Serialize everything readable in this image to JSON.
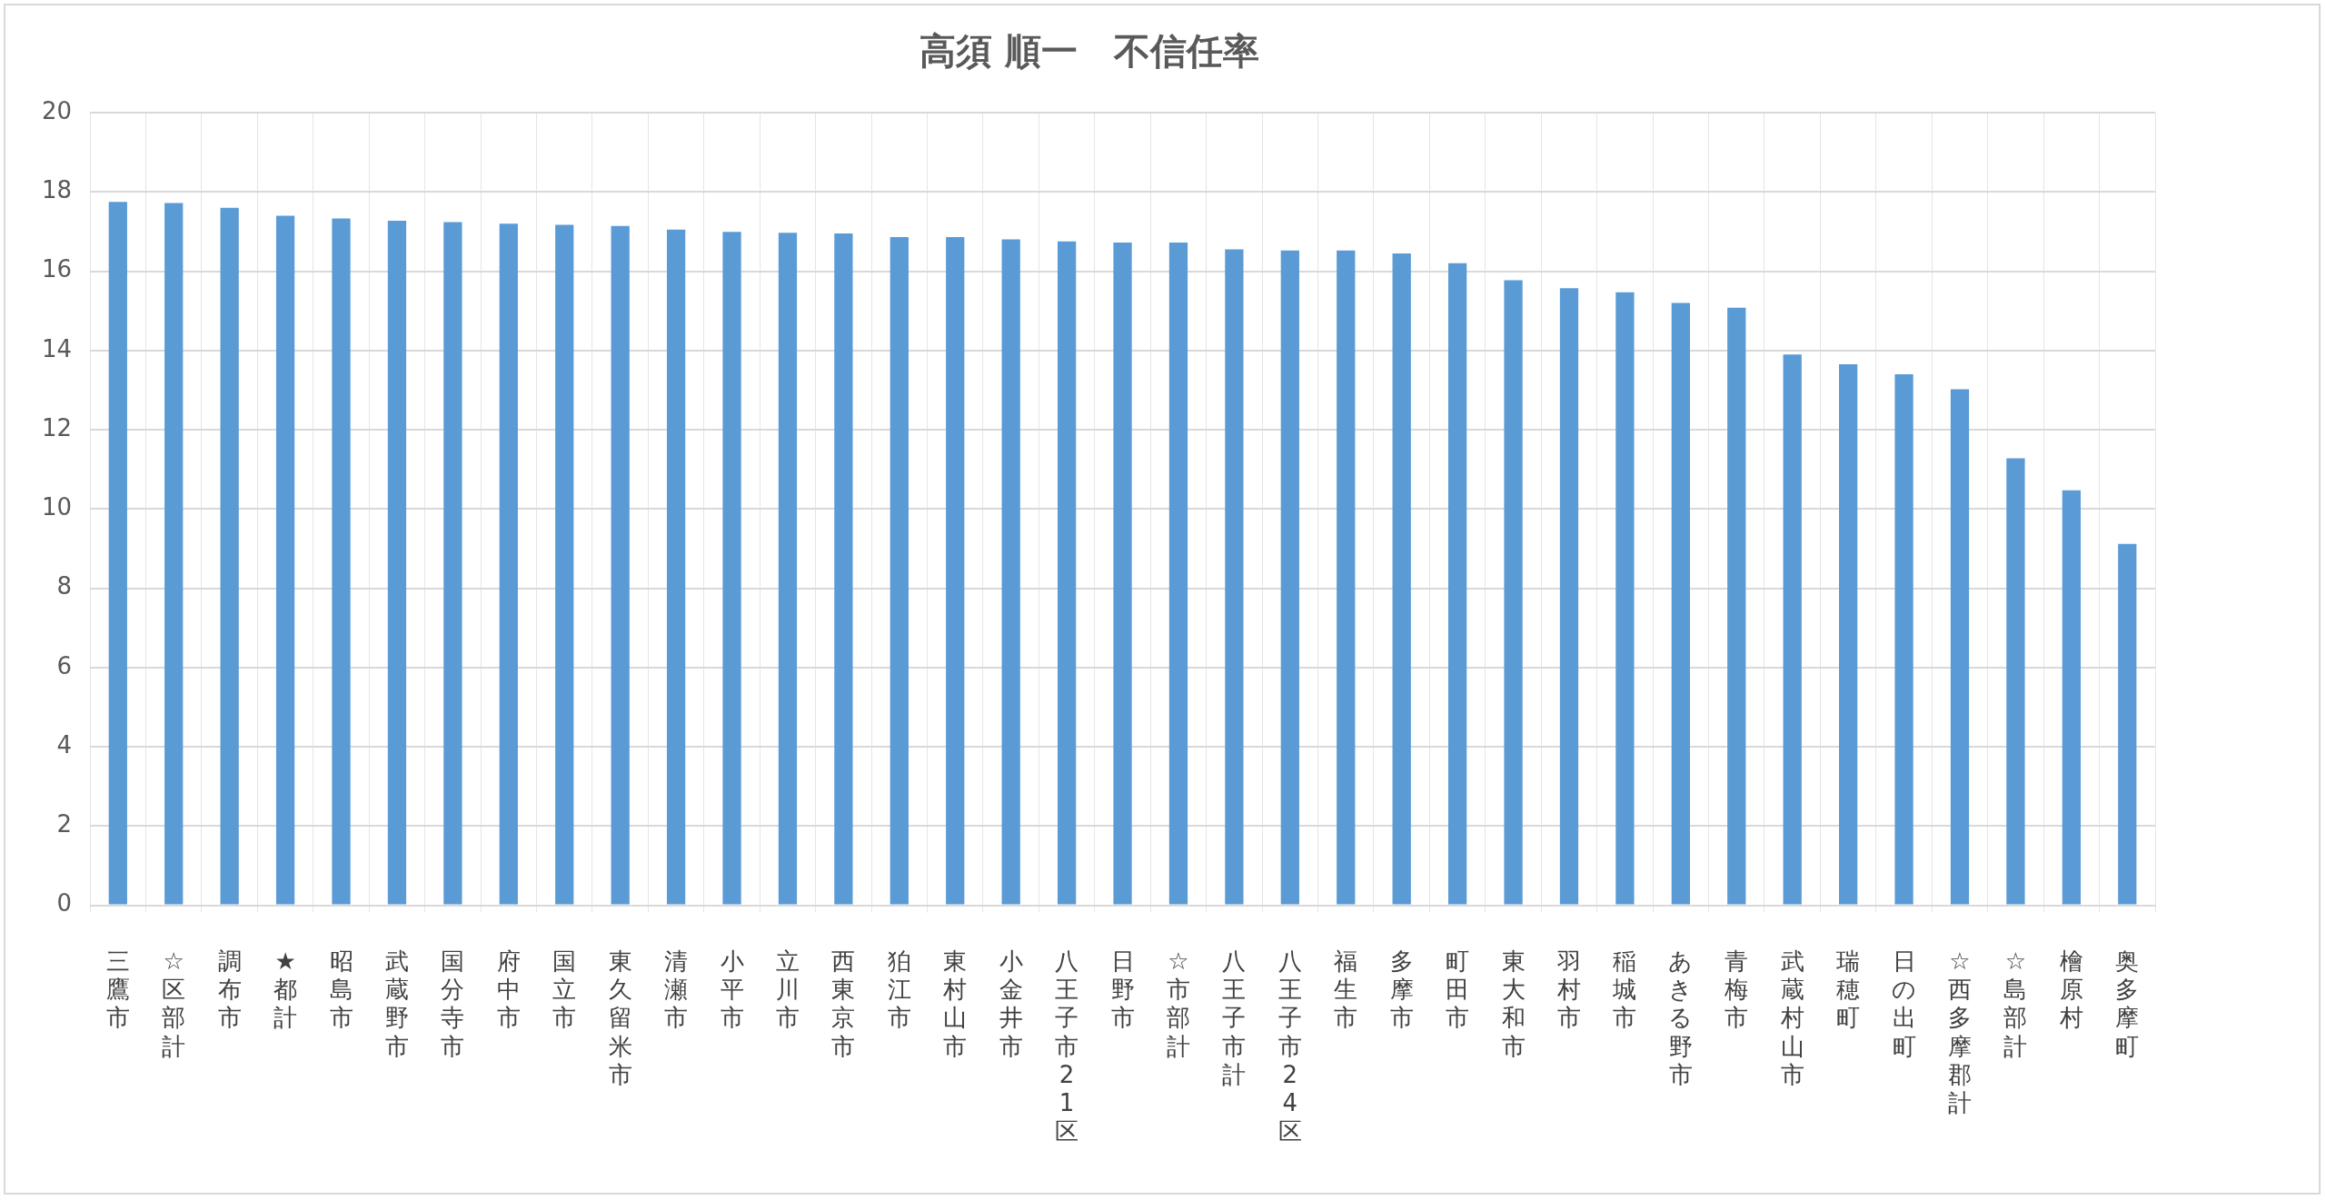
{
  "chart_data": {
    "type": "bar",
    "title": "高須 順一　不信任率",
    "categories": [
      "三鷹市",
      "☆区部計",
      "調布市",
      "★都計",
      "昭島市",
      "武蔵野市",
      "国分寺市",
      "府中市",
      "国立市",
      "東久留米市",
      "清瀬市",
      "小平市",
      "立川市",
      "西東京市",
      "狛江市",
      "東村山市",
      "小金井市",
      "八王子市21区",
      "日野市",
      "☆市部計",
      "八王子市計",
      "八王子市24区",
      "福生市",
      "多摩市",
      "町田市",
      "東大和市",
      "羽村市",
      "稲城市",
      "あきる野市",
      "青梅市",
      "武蔵村山市",
      "瑞穂町",
      "日の出町",
      "☆西多摩郡計",
      "☆島部計",
      "檜原村",
      "奥多摩町"
    ],
    "values": [
      17.75,
      17.72,
      17.6,
      17.4,
      17.33,
      17.27,
      17.24,
      17.2,
      17.17,
      17.14,
      17.05,
      16.99,
      16.97,
      16.95,
      16.86,
      16.86,
      16.8,
      16.75,
      16.72,
      16.72,
      16.55,
      16.52,
      16.52,
      16.45,
      16.2,
      15.77,
      15.57,
      15.47,
      15.2,
      15.08,
      13.9,
      13.65,
      13.4,
      13.02,
      11.28,
      10.47,
      9.12
    ],
    "color": "#5b9bd5",
    "ylim": [
      0,
      20
    ],
    "yticks": [
      0,
      2,
      4,
      6,
      8,
      10,
      12,
      14,
      16,
      18,
      20
    ],
    "grid": true,
    "legend": false
  }
}
